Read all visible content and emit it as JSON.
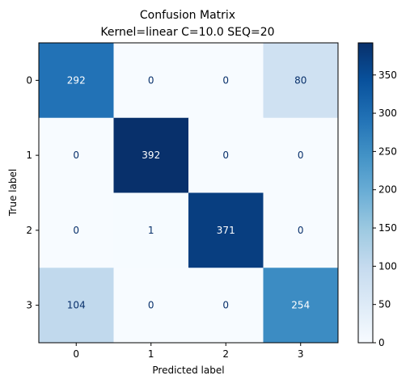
{
  "chart_data": {
    "type": "heatmap",
    "title_line1": "Confusion Matrix",
    "title_line2": "Kernel=linear C=10.0 SEQ=20",
    "xlabel": "Predicted label",
    "ylabel": "True label",
    "x_categories": [
      "0",
      "1",
      "2",
      "3"
    ],
    "y_categories": [
      "0",
      "1",
      "2",
      "3"
    ],
    "values": [
      [
        292,
        0,
        0,
        80
      ],
      [
        0,
        392,
        0,
        0
      ],
      [
        0,
        1,
        371,
        0
      ],
      [
        104,
        0,
        0,
        254
      ]
    ],
    "colorbar_range": [
      0,
      392
    ],
    "colorbar_ticks": [
      "0",
      "50",
      "100",
      "150",
      "200",
      "250",
      "300",
      "350"
    ],
    "colormap": "Blues",
    "text_color_light": "#ffffff",
    "text_color_dark": "#08306b"
  }
}
